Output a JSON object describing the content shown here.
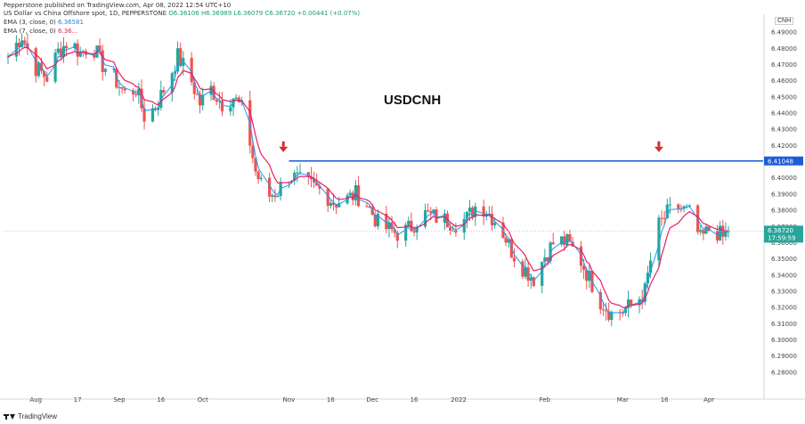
{
  "header": {
    "published": "Pepperstone published on TradingView.com, Apr 08, 2022 12:54 UTC+10",
    "symbol_line": "US Dollar vs China Offshore spot, 1D, PEPPERSTONE",
    "ohlc": "O6.36106 H6.36989 L6.36079 C6.36720 +0.00441 (+0.07%)",
    "ema1_label": "EMA (3, close, 0)",
    "ema1_value": "6.36581",
    "ema2_label": "EMA (7, close, 0)",
    "ema2_value": "6.36...",
    "currency": "CNH"
  },
  "footer": {
    "brand": "TradingView"
  },
  "chart_data": {
    "type": "candlestick",
    "title": "USDCNH",
    "ylim": [
      6.27,
      6.5
    ],
    "y_ticks": [
      "6.49000",
      "6.48000",
      "6.47000",
      "6.46000",
      "6.45000",
      "6.44000",
      "6.43000",
      "6.42000",
      "6.41000",
      "6.40000",
      "6.39000",
      "6.38000",
      "6.37000",
      "6.36000",
      "6.35000",
      "6.34000",
      "6.33000",
      "6.32000",
      "6.31000",
      "6.30000",
      "6.29000",
      "6.28000"
    ],
    "x_ticks": [
      "Aug",
      "17",
      "Sep",
      "16",
      "Oct",
      "Nov",
      "16",
      "Dec",
      "16",
      "2022",
      "Feb",
      "Mar",
      "16",
      "Apr"
    ],
    "x_tick_dates": [
      "2021-08-02",
      "2021-08-17",
      "2021-09-01",
      "2021-09-16",
      "2021-10-01",
      "2021-11-01",
      "2021-11-16",
      "2021-12-01",
      "2021-12-16",
      "2022-01-01",
      "2022-02-01",
      "2022-03-01",
      "2022-03-16",
      "2022-04-01"
    ],
    "date_range": [
      "2021-07-23",
      "2022-04-08"
    ],
    "close_series": [
      {
        "date": "2021-07-23",
        "close": 6.475
      },
      {
        "date": "2021-07-28",
        "close": 6.488
      },
      {
        "date": "2021-08-02",
        "close": 6.468
      },
      {
        "date": "2021-08-06",
        "close": 6.462
      },
      {
        "date": "2021-08-10",
        "close": 6.478
      },
      {
        "date": "2021-08-14",
        "close": 6.485
      },
      {
        "date": "2021-08-18",
        "close": 6.477
      },
      {
        "date": "2021-08-22",
        "close": 6.483
      },
      {
        "date": "2021-08-26",
        "close": 6.47
      },
      {
        "date": "2021-08-30",
        "close": 6.462
      },
      {
        "date": "2021-09-03",
        "close": 6.452
      },
      {
        "date": "2021-09-07",
        "close": 6.455
      },
      {
        "date": "2021-09-10",
        "close": 6.438
      },
      {
        "date": "2021-09-14",
        "close": 6.444
      },
      {
        "date": "2021-09-18",
        "close": 6.458
      },
      {
        "date": "2021-09-22",
        "close": 6.475
      },
      {
        "date": "2021-09-26",
        "close": 6.464
      },
      {
        "date": "2021-09-30",
        "close": 6.446
      },
      {
        "date": "2021-10-04",
        "close": 6.455
      },
      {
        "date": "2021-10-08",
        "close": 6.446
      },
      {
        "date": "2021-10-12",
        "close": 6.45
      },
      {
        "date": "2021-10-16",
        "close": 6.44
      },
      {
        "date": "2021-10-20",
        "close": 6.404
      },
      {
        "date": "2021-10-24",
        "close": 6.388
      },
      {
        "date": "2021-10-28",
        "close": 6.392
      },
      {
        "date": "2021-11-01",
        "close": 6.402
      },
      {
        "date": "2021-11-05",
        "close": 6.398
      },
      {
        "date": "2021-11-09",
        "close": 6.395
      },
      {
        "date": "2021-11-13",
        "close": 6.392
      },
      {
        "date": "2021-11-17",
        "close": 6.385
      },
      {
        "date": "2021-11-21",
        "close": 6.386
      },
      {
        "date": "2021-11-25",
        "close": 6.39
      },
      {
        "date": "2021-11-29",
        "close": 6.384
      },
      {
        "date": "2021-12-03",
        "close": 6.372
      },
      {
        "date": "2021-12-07",
        "close": 6.368
      },
      {
        "date": "2021-12-11",
        "close": 6.365
      },
      {
        "date": "2021-12-15",
        "close": 6.37
      },
      {
        "date": "2021-12-19",
        "close": 6.378
      },
      {
        "date": "2021-12-23",
        "close": 6.376
      },
      {
        "date": "2021-12-27",
        "close": 6.374
      },
      {
        "date": "2021-12-31",
        "close": 6.372
      },
      {
        "date": "2022-01-04",
        "close": 6.375
      },
      {
        "date": "2022-01-08",
        "close": 6.385
      },
      {
        "date": "2022-01-12",
        "close": 6.378
      },
      {
        "date": "2022-01-16",
        "close": 6.37
      },
      {
        "date": "2022-01-20",
        "close": 6.355
      },
      {
        "date": "2022-01-24",
        "close": 6.345
      },
      {
        "date": "2022-01-28",
        "close": 6.338
      },
      {
        "date": "2022-02-01",
        "close": 6.352
      },
      {
        "date": "2022-02-05",
        "close": 6.362
      },
      {
        "date": "2022-02-09",
        "close": 6.36
      },
      {
        "date": "2022-02-13",
        "close": 6.352
      },
      {
        "date": "2022-02-17",
        "close": 6.338
      },
      {
        "date": "2022-02-21",
        "close": 6.324
      },
      {
        "date": "2022-02-25",
        "close": 6.316
      },
      {
        "date": "2022-03-01",
        "close": 6.318
      },
      {
        "date": "2022-03-05",
        "close": 6.322
      },
      {
        "date": "2022-03-09",
        "close": 6.33
      },
      {
        "date": "2022-03-13",
        "close": 6.368
      },
      {
        "date": "2022-03-17",
        "close": 6.378
      },
      {
        "date": "2022-03-21",
        "close": 6.382
      },
      {
        "date": "2022-03-25",
        "close": 6.378
      },
      {
        "date": "2022-03-29",
        "close": 6.362
      },
      {
        "date": "2022-04-02",
        "close": 6.37
      },
      {
        "date": "2022-04-06",
        "close": 6.363
      },
      {
        "date": "2022-04-08",
        "close": 6.3672
      }
    ],
    "ema_periods": [
      3,
      7
    ],
    "colors": {
      "up": "#26a69a",
      "down": "#ef5350",
      "ema3": "#2196f3",
      "ema7": "#e91e63",
      "hline": "#1e5cd6"
    },
    "hline": {
      "value": 6.41048,
      "label": "6.41048",
      "start": "2021-11-01",
      "end": "2022-04-08"
    },
    "arrows": [
      {
        "date": "2021-10-30"
      },
      {
        "date": "2022-03-14"
      }
    ],
    "last_price": {
      "value": 6.3672,
      "label": "6.36720",
      "countdown": "17:59:59"
    }
  }
}
